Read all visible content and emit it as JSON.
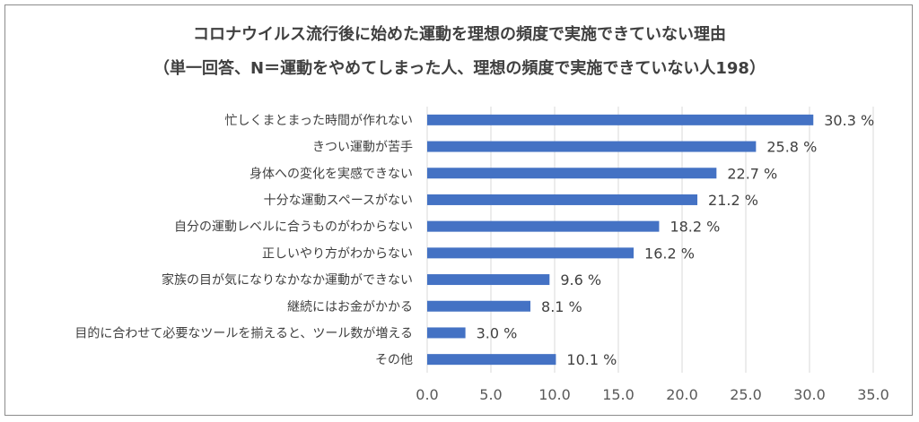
{
  "chart_data": {
    "type": "bar",
    "orientation": "horizontal",
    "title": "コロナウイルス流行後に始めた運動を理想の頻度で実施できていない理由",
    "subtitle": "（単一回答、N＝運動をやめてしまった人、理想の頻度で実施できていない人198）",
    "categories": [
      "忙しくまとまった時間が作れない",
      "きつい運動が苦手",
      "身体への変化を実感できない",
      "十分な運動スペースがない",
      "自分の運動レベルに合うものがわからない",
      "正しいやり方がわからない",
      "家族の目が気になりなかなか運動ができない",
      "継続にはお金がかかる",
      "目的に合わせて必要なツールを揃えると、ツール数が増える",
      "その他"
    ],
    "values": [
      30.3,
      25.8,
      22.7,
      21.2,
      18.2,
      16.2,
      9.6,
      8.1,
      3.0,
      10.1
    ],
    "value_labels": [
      "30.3 %",
      "25.8 %",
      "22.7 %",
      "21.2 %",
      "18.2 %",
      "16.2 %",
      "9.6 %",
      "8.1 %",
      "3.0 %",
      "10.1 %"
    ],
    "xlim": [
      0,
      35
    ],
    "xticks": [
      "0.0",
      "5.0",
      "10.0",
      "15.0",
      "20.0",
      "25.0",
      "30.0",
      "35.0"
    ],
    "grid": "vertical",
    "legend": "none",
    "bar_color": "#4472c4",
    "grid_color": "#d9d9d9"
  }
}
